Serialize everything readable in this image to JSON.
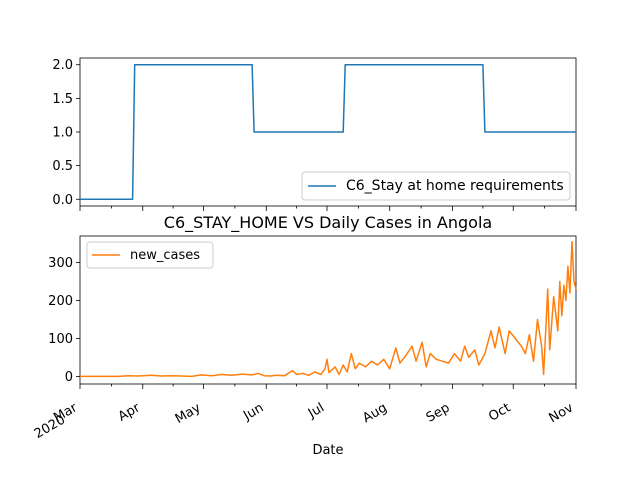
{
  "chart_data": [
    {
      "type": "line",
      "title": "",
      "xlabel": "",
      "ylabel": "",
      "x_start": "2020-03-01",
      "x_end": "2020-11-01",
      "ylim": [
        -0.1,
        2.1
      ],
      "yticks": [
        0.0,
        0.5,
        1.0,
        1.5,
        2.0
      ],
      "ytick_labels": [
        "0.0",
        "0.5",
        "1.0",
        "1.5",
        "2.0"
      ],
      "legend_position": "lower-right",
      "series": [
        {
          "name": "C6_Stay at home requirements",
          "color": "#1f77b4",
          "points": [
            [
              "2020-03-01",
              0
            ],
            [
              "2020-03-27",
              0
            ],
            [
              "2020-03-28",
              2
            ],
            [
              "2020-05-25",
              2
            ],
            [
              "2020-05-26",
              1
            ],
            [
              "2020-07-09",
              1
            ],
            [
              "2020-07-10",
              2
            ],
            [
              "2020-09-16",
              2
            ],
            [
              "2020-09-17",
              1
            ],
            [
              "2020-11-01",
              1
            ]
          ]
        }
      ]
    },
    {
      "type": "line",
      "title": "C6_STAY_HOME VS Daily Cases in Angola",
      "xlabel": "Date",
      "ylabel": "",
      "x_start": "2020-03-01",
      "x_end": "2020-11-01",
      "ylim": [
        -20,
        370
      ],
      "yticks": [
        0,
        100,
        200,
        300
      ],
      "ytick_labels": [
        "0",
        "100",
        "200",
        "300"
      ],
      "xtick_labels": [
        "Mar\n2020",
        "Apr",
        "May",
        "Jun",
        "Jul",
        "Aug",
        "Sep",
        "Oct",
        "Nov"
      ],
      "legend_position": "upper-left",
      "series": [
        {
          "name": "new_cases",
          "color": "#ff7f0e",
          "points": [
            [
              "2020-03-01",
              0
            ],
            [
              "2020-03-20",
              0
            ],
            [
              "2020-03-25",
              2
            ],
            [
              "2020-03-30",
              1
            ],
            [
              "2020-04-05",
              3
            ],
            [
              "2020-04-10",
              1
            ],
            [
              "2020-04-15",
              2
            ],
            [
              "2020-04-20",
              1
            ],
            [
              "2020-04-25",
              0
            ],
            [
              "2020-04-30",
              4
            ],
            [
              "2020-05-05",
              2
            ],
            [
              "2020-05-10",
              5
            ],
            [
              "2020-05-15",
              3
            ],
            [
              "2020-05-20",
              6
            ],
            [
              "2020-05-25",
              4
            ],
            [
              "2020-05-28",
              8
            ],
            [
              "2020-05-31",
              2
            ],
            [
              "2020-06-03",
              1
            ],
            [
              "2020-06-06",
              3
            ],
            [
              "2020-06-10",
              2
            ],
            [
              "2020-06-14",
              15
            ],
            [
              "2020-06-16",
              5
            ],
            [
              "2020-06-19",
              8
            ],
            [
              "2020-06-22",
              3
            ],
            [
              "2020-06-25",
              12
            ],
            [
              "2020-06-28",
              5
            ],
            [
              "2020-06-30",
              20
            ],
            [
              "2020-07-01",
              45
            ],
            [
              "2020-07-02",
              10
            ],
            [
              "2020-07-05",
              25
            ],
            [
              "2020-07-07",
              5
            ],
            [
              "2020-07-09",
              30
            ],
            [
              "2020-07-11",
              12
            ],
            [
              "2020-07-13",
              60
            ],
            [
              "2020-07-15",
              20
            ],
            [
              "2020-07-17",
              35
            ],
            [
              "2020-07-20",
              25
            ],
            [
              "2020-07-23",
              40
            ],
            [
              "2020-07-26",
              30
            ],
            [
              "2020-07-29",
              45
            ],
            [
              "2020-08-01",
              20
            ],
            [
              "2020-08-04",
              75
            ],
            [
              "2020-08-06",
              35
            ],
            [
              "2020-08-09",
              55
            ],
            [
              "2020-08-12",
              80
            ],
            [
              "2020-08-14",
              40
            ],
            [
              "2020-08-17",
              90
            ],
            [
              "2020-08-19",
              25
            ],
            [
              "2020-08-21",
              60
            ],
            [
              "2020-08-24",
              45
            ],
            [
              "2020-08-27",
              40
            ],
            [
              "2020-08-30",
              35
            ],
            [
              "2020-09-02",
              60
            ],
            [
              "2020-09-05",
              40
            ],
            [
              "2020-09-07",
              80
            ],
            [
              "2020-09-09",
              50
            ],
            [
              "2020-09-12",
              70
            ],
            [
              "2020-09-14",
              30
            ],
            [
              "2020-09-17",
              60
            ],
            [
              "2020-09-20",
              120
            ],
            [
              "2020-09-22",
              75
            ],
            [
              "2020-09-24",
              130
            ],
            [
              "2020-09-27",
              60
            ],
            [
              "2020-09-29",
              120
            ],
            [
              "2020-10-02",
              100
            ],
            [
              "2020-10-05",
              80
            ],
            [
              "2020-10-07",
              60
            ],
            [
              "2020-10-09",
              110
            ],
            [
              "2020-10-11",
              40
            ],
            [
              "2020-10-13",
              150
            ],
            [
              "2020-10-15",
              80
            ],
            [
              "2020-10-16",
              5
            ],
            [
              "2020-10-18",
              230
            ],
            [
              "2020-10-19",
              70
            ],
            [
              "2020-10-21",
              210
            ],
            [
              "2020-10-23",
              120
            ],
            [
              "2020-10-24",
              250
            ],
            [
              "2020-10-25",
              160
            ],
            [
              "2020-10-26",
              240
            ],
            [
              "2020-10-27",
              200
            ],
            [
              "2020-10-28",
              290
            ],
            [
              "2020-10-29",
              220
            ],
            [
              "2020-10-30",
              355
            ],
            [
              "2020-10-31",
              250
            ],
            [
              "2020-11-01",
              230
            ]
          ]
        }
      ]
    }
  ]
}
